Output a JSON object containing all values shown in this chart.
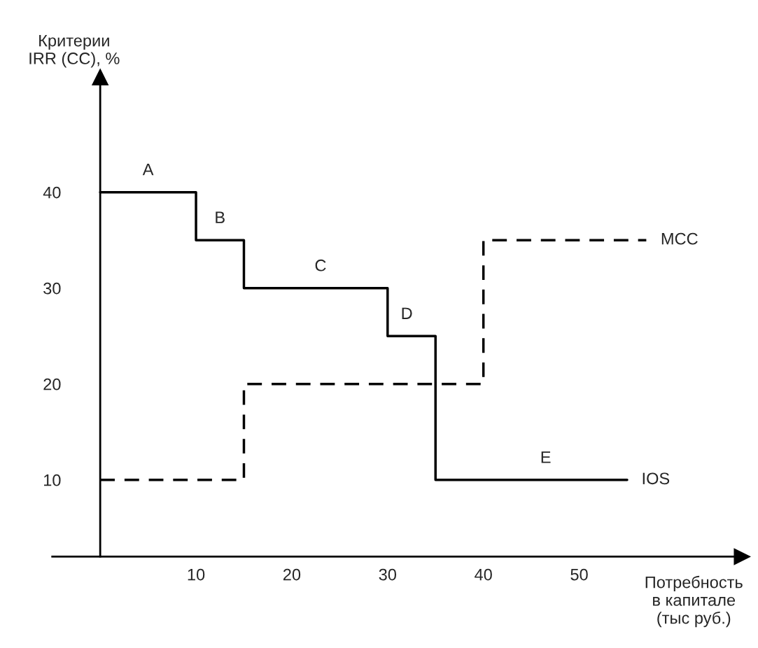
{
  "chart_data": {
    "type": "step",
    "xlabel": "Потребность\nв капитале\n(тыс руб.)",
    "ylabel": "Критерии\nIRR (CC), %",
    "series": [
      {
        "name": "IOS",
        "color": "#000000",
        "line_style": "solid",
        "x": [
          0,
          10,
          15,
          30,
          35,
          55
        ],
        "values": [
          40,
          35,
          30,
          25,
          10,
          10
        ]
      },
      {
        "name": "MCC",
        "color": "#000000",
        "line_style": "dashed",
        "x": [
          0,
          15,
          40,
          57
        ],
        "values": [
          10,
          20,
          35,
          35
        ]
      }
    ],
    "annotations": [
      {
        "text": "A",
        "x": 5,
        "y": 40
      },
      {
        "text": "B",
        "x": 12.5,
        "y": 35
      },
      {
        "text": "C",
        "x": 23,
        "y": 30
      },
      {
        "text": "D",
        "x": 32,
        "y": 25
      },
      {
        "text": "E",
        "x": 46.5,
        "y": 10
      }
    ],
    "xlim": [
      -5,
      67
    ],
    "ylim": [
      2,
      52
    ],
    "xticks": [
      10,
      20,
      30,
      40,
      50
    ],
    "yticks": [
      10,
      20,
      30,
      40
    ],
    "grid": false,
    "legend": false
  }
}
